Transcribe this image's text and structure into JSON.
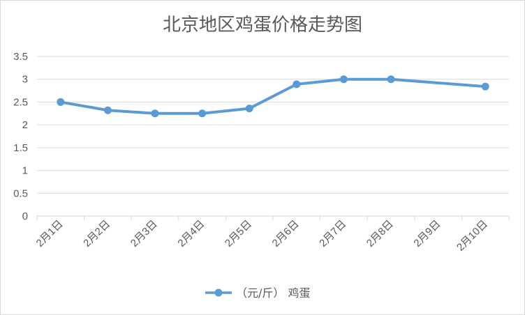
{
  "chart_data": {
    "type": "line",
    "title": "北京地区鸡蛋价格走势图",
    "categories": [
      "2月1日",
      "2月2日",
      "2月3日",
      "2月4日",
      "2月5日",
      "2月6日",
      "2月7日",
      "2月8日",
      "2月9日",
      "2月10日"
    ],
    "series": [
      {
        "name": "（元/斤） 鸡蛋",
        "color": "#5b9bd5",
        "values": [
          2.5,
          2.32,
          2.25,
          2.25,
          2.36,
          2.89,
          3.0,
          3.0,
          null,
          2.84
        ]
      }
    ],
    "ylim": [
      0,
      3.5
    ],
    "yticks": [
      "0",
      "0.5",
      "1",
      "1.5",
      "2",
      "2.5",
      "3",
      "3.5"
    ],
    "xlabel": "",
    "ylabel": "",
    "grid": true,
    "legend_position": "bottom",
    "gridline_color": "#d9d9d9",
    "axis_text_color": "#595959"
  }
}
